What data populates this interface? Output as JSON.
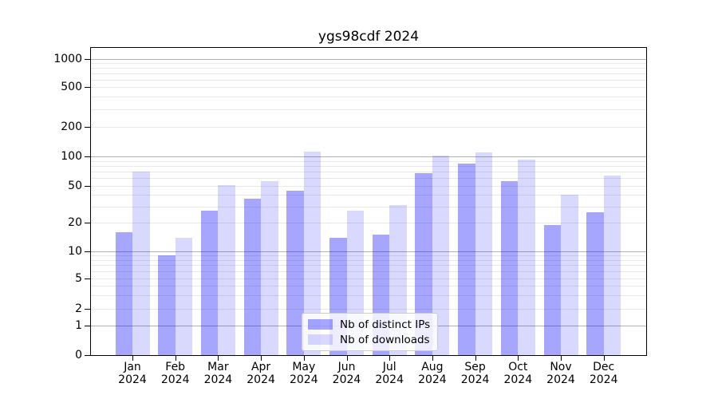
{
  "title": "ygs98cdf 2024",
  "chart_data": {
    "type": "bar",
    "title": "ygs98cdf 2024",
    "xlabel": "",
    "ylabel": "",
    "categories": [
      "Jan 2024",
      "Feb 2024",
      "Mar 2024",
      "Apr 2024",
      "May 2024",
      "Jun 2024",
      "Jul 2024",
      "Aug 2024",
      "Sep 2024",
      "Oct 2024",
      "Nov 2024",
      "Dec 2024"
    ],
    "series": [
      {
        "name": "Nb of distinct IPs",
        "color": "rgba(0,0,255,0.35)",
        "values": [
          16,
          9,
          27,
          36,
          44,
          14,
          15,
          67,
          84,
          56,
          19,
          26
        ]
      },
      {
        "name": "Nb of downloads",
        "color": "rgba(0,0,255,0.15)",
        "values": [
          70,
          14,
          51,
          56,
          112,
          27,
          31,
          101,
          110,
          93,
          40,
          64
        ]
      }
    ],
    "yscale": "log (with 0 pinned at axis base)",
    "yticks": [
      0,
      1,
      2,
      5,
      10,
      20,
      50,
      100,
      200,
      500,
      1000
    ],
    "ylim": [
      0,
      1300
    ],
    "grid": true,
    "grid_major_at": [
      1,
      10,
      100,
      1000
    ],
    "legend_position": "lower center"
  },
  "colors": {
    "bar_dark": "rgba(0,0,255,0.35)",
    "bar_light": "rgba(0,0,255,0.15)",
    "grid_major": "#b2b2b2",
    "grid_minor": "#e9e9e9",
    "axis": "#000000",
    "background": "#ffffff"
  }
}
